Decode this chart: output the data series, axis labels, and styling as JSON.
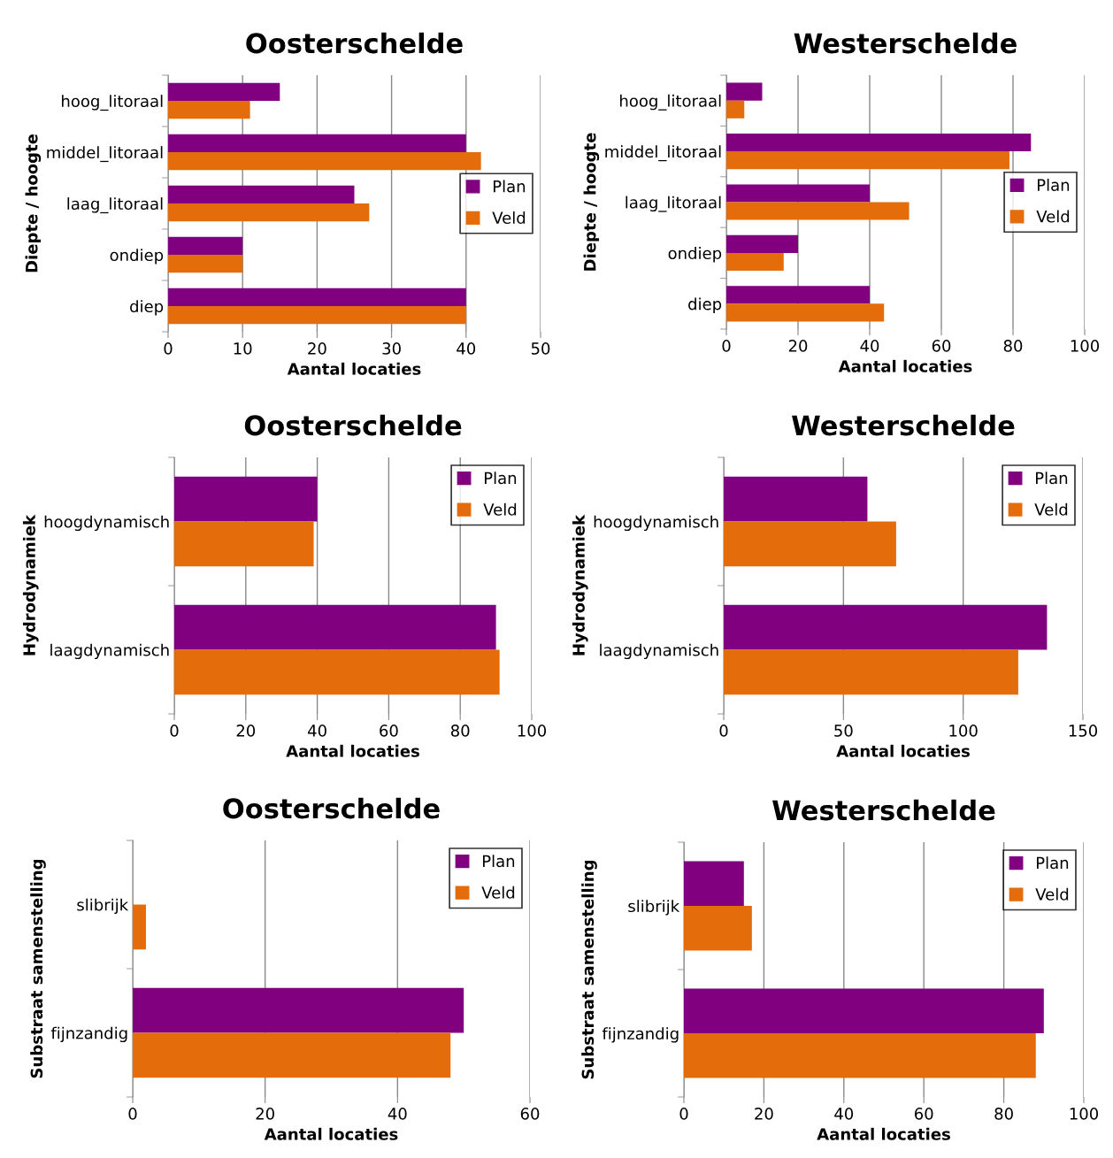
{
  "chart_data": [
    {
      "type": "bar",
      "orientation": "horizontal",
      "title": "Oosterschelde",
      "xlabel": "Aantal locaties",
      "ylabel": "Diepte / hoogte",
      "categories": [
        "hoog_litoraal",
        "middel_litoraal",
        "laag_litoraal",
        "ondiep",
        "diep"
      ],
      "series": [
        {
          "name": "Plan",
          "color": "#800080",
          "values": [
            15,
            40,
            25,
            10,
            40
          ]
        },
        {
          "name": "Veld",
          "color": "#e46c0a",
          "values": [
            11,
            42,
            27,
            10,
            40
          ]
        }
      ],
      "xlim": [
        0,
        50
      ],
      "xticks": [
        0,
        10,
        20,
        30,
        40,
        50
      ],
      "grid": "x",
      "legend": "right"
    },
    {
      "type": "bar",
      "orientation": "horizontal",
      "title": "Westerschelde",
      "xlabel": "Aantal locaties",
      "ylabel": "Diepte / hoogte",
      "categories": [
        "hoog_litoraal",
        "middel_litoraal",
        "laag_litoraal",
        "ondiep",
        "diep"
      ],
      "series": [
        {
          "name": "Plan",
          "color": "#800080",
          "values": [
            10,
            85,
            40,
            20,
            40
          ]
        },
        {
          "name": "Veld",
          "color": "#e46c0a",
          "values": [
            5,
            79,
            51,
            16,
            44
          ]
        }
      ],
      "xlim": [
        0,
        100
      ],
      "xticks": [
        0,
        20,
        40,
        60,
        80,
        100
      ],
      "grid": "x",
      "legend": "right"
    },
    {
      "type": "bar",
      "orientation": "horizontal",
      "title": "Oosterschelde",
      "xlabel": "Aantal locaties",
      "ylabel": "Hydrodynamiek",
      "categories": [
        "hoogdynamisch",
        "laagdynamisch"
      ],
      "series": [
        {
          "name": "Plan",
          "color": "#800080",
          "values": [
            40,
            90
          ]
        },
        {
          "name": "Veld",
          "color": "#e46c0a",
          "values": [
            39,
            91
          ]
        }
      ],
      "xlim": [
        0,
        100
      ],
      "xticks": [
        0,
        20,
        40,
        60,
        80,
        100
      ],
      "grid": "x",
      "legend": "top right"
    },
    {
      "type": "bar",
      "orientation": "horizontal",
      "title": "Westerschelde",
      "xlabel": "Aantal locaties",
      "ylabel": "Hydrodynamiek",
      "categories": [
        "hoogdynamisch",
        "laagdynamisch"
      ],
      "series": [
        {
          "name": "Plan",
          "color": "#800080",
          "values": [
            60,
            135
          ]
        },
        {
          "name": "Veld",
          "color": "#e46c0a",
          "values": [
            72,
            123
          ]
        }
      ],
      "xlim": [
        0,
        150
      ],
      "xticks": [
        0,
        50,
        100,
        150
      ],
      "grid": "x",
      "legend": "top right"
    },
    {
      "type": "bar",
      "orientation": "horizontal",
      "title": "Oosterschelde",
      "xlabel": "Aantal locaties",
      "ylabel": "Substraat samenstelling",
      "categories": [
        "slibrijk",
        "fijnzandig"
      ],
      "series": [
        {
          "name": "Plan",
          "color": "#800080",
          "values": [
            0,
            50
          ]
        },
        {
          "name": "Veld",
          "color": "#e46c0a",
          "values": [
            2,
            48
          ]
        }
      ],
      "xlim": [
        0,
        60
      ],
      "xticks": [
        0,
        20,
        40,
        60
      ],
      "grid": "x",
      "legend": "top right"
    },
    {
      "type": "bar",
      "orientation": "horizontal",
      "title": "Westerschelde",
      "xlabel": "Aantal locaties",
      "ylabel": "Substraat samenstelling",
      "categories": [
        "slibrijk",
        "fijnzandig"
      ],
      "series": [
        {
          "name": "Plan",
          "color": "#800080",
          "values": [
            15,
            90
          ]
        },
        {
          "name": "Veld",
          "color": "#e46c0a",
          "values": [
            17,
            88
          ]
        }
      ],
      "xlim": [
        0,
        100
      ],
      "xticks": [
        0,
        20,
        40,
        60,
        80,
        100
      ],
      "grid": "x",
      "legend": "top right"
    }
  ]
}
